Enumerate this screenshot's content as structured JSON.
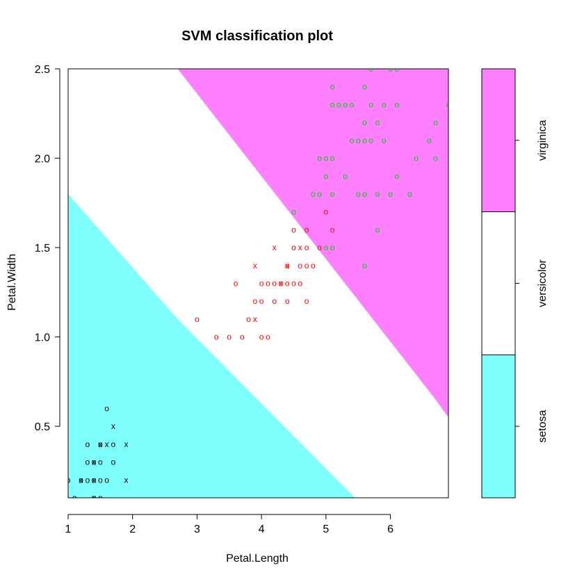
{
  "chart_data": {
    "type": "scatter",
    "title": "SVM classification plot",
    "xlabel": "Petal.Length",
    "ylabel": "Petal.Width",
    "xlim": [
      1,
      6.9
    ],
    "ylim": [
      0.1,
      2.5
    ],
    "x_ticks": [
      1,
      2,
      3,
      4,
      5,
      6
    ],
    "y_ticks": [
      0.5,
      1.0,
      1.5,
      2.0,
      2.5
    ],
    "x_tick_labels": [
      "1",
      "2",
      "3",
      "4",
      "5",
      "6"
    ],
    "y_tick_labels": [
      "0.5",
      "1.0",
      "1.5",
      "2.0",
      "2.5"
    ],
    "grid": false,
    "legend_position": "right",
    "markers": {
      "non_support_vector": "o",
      "support_vector": "x"
    },
    "regions": [
      {
        "name": "setosa",
        "color": "#80FFFF",
        "boundary": [
          [
            1.0,
            1.8
          ],
          [
            2.7,
            1.1
          ],
          [
            5.45,
            0.1
          ]
        ]
      },
      {
        "name": "versicolor",
        "color": "#FFFFFF",
        "boundary": [
          [
            2.7,
            2.5
          ],
          [
            6.7,
            0.65
          ],
          [
            6.9,
            0.55
          ]
        ]
      },
      {
        "name": "virginica",
        "color": "#FF80FF"
      }
    ],
    "legend": {
      "labels": [
        "setosa",
        "versicolor",
        "virginica"
      ],
      "colors": [
        "#80FFFF",
        "#FFFFFF",
        "#FF80FF"
      ]
    },
    "series": [
      {
        "name": "setosa",
        "color": "#000000",
        "points": [
          [
            1.0,
            0.2,
            "o"
          ],
          [
            1.1,
            0.1,
            "o"
          ],
          [
            1.2,
            0.2,
            "o"
          ],
          [
            1.3,
            0.2,
            "o"
          ],
          [
            1.3,
            0.3,
            "o"
          ],
          [
            1.3,
            0.4,
            "o"
          ],
          [
            1.4,
            0.1,
            "o"
          ],
          [
            1.4,
            0.2,
            "o"
          ],
          [
            1.4,
            0.3,
            "o"
          ],
          [
            1.5,
            0.1,
            "o"
          ],
          [
            1.5,
            0.2,
            "o"
          ],
          [
            1.5,
            0.3,
            "o"
          ],
          [
            1.5,
            0.4,
            "o"
          ],
          [
            1.6,
            0.2,
            "o"
          ],
          [
            1.6,
            0.6,
            "o"
          ],
          [
            1.7,
            0.3,
            "o"
          ],
          [
            1.7,
            0.4,
            "o"
          ],
          [
            1.2,
            0.2,
            "x"
          ],
          [
            1.4,
            0.1,
            "x"
          ],
          [
            1.4,
            0.2,
            "x"
          ],
          [
            1.4,
            0.3,
            "x"
          ],
          [
            1.5,
            0.4,
            "x"
          ],
          [
            1.6,
            0.4,
            "x"
          ],
          [
            1.7,
            0.5,
            "x"
          ],
          [
            1.9,
            0.2,
            "x"
          ],
          [
            1.9,
            0.4,
            "x"
          ]
        ]
      },
      {
        "name": "versicolor",
        "color": "#FF0000",
        "points": [
          [
            3.0,
            1.1,
            "o"
          ],
          [
            3.3,
            1.0,
            "o"
          ],
          [
            3.5,
            1.0,
            "o"
          ],
          [
            3.6,
            1.3,
            "o"
          ],
          [
            3.7,
            1.0,
            "o"
          ],
          [
            3.8,
            1.1,
            "o"
          ],
          [
            3.9,
            1.2,
            "o"
          ],
          [
            4.0,
            1.0,
            "o"
          ],
          [
            4.0,
            1.2,
            "o"
          ],
          [
            4.0,
            1.3,
            "o"
          ],
          [
            4.1,
            1.0,
            "o"
          ],
          [
            4.1,
            1.3,
            "o"
          ],
          [
            4.2,
            1.2,
            "o"
          ],
          [
            4.2,
            1.3,
            "o"
          ],
          [
            4.3,
            1.3,
            "o"
          ],
          [
            4.4,
            1.2,
            "o"
          ],
          [
            4.4,
            1.3,
            "o"
          ],
          [
            4.4,
            1.4,
            "o"
          ],
          [
            4.5,
            1.3,
            "o"
          ],
          [
            4.5,
            1.5,
            "o"
          ],
          [
            4.5,
            1.6,
            "o"
          ],
          [
            4.6,
            1.3,
            "o"
          ],
          [
            4.6,
            1.4,
            "o"
          ],
          [
            4.7,
            1.2,
            "o"
          ],
          [
            4.7,
            1.4,
            "o"
          ],
          [
            4.7,
            1.5,
            "o"
          ],
          [
            4.7,
            1.6,
            "o"
          ],
          [
            4.8,
            1.4,
            "o"
          ],
          [
            4.9,
            1.5,
            "o"
          ],
          [
            5.0,
            1.7,
            "o"
          ],
          [
            5.1,
            1.6,
            "o"
          ],
          [
            3.9,
            1.1,
            "x"
          ],
          [
            3.9,
            1.4,
            "x"
          ],
          [
            4.2,
            1.5,
            "x"
          ],
          [
            4.3,
            1.3,
            "x"
          ],
          [
            4.4,
            1.4,
            "x"
          ],
          [
            4.6,
            1.5,
            "x"
          ]
        ]
      },
      {
        "name": "virginica",
        "color": "#00CC00",
        "points": [
          [
            4.5,
            1.7,
            "o"
          ],
          [
            4.8,
            1.8,
            "o"
          ],
          [
            4.9,
            1.8,
            "o"
          ],
          [
            4.9,
            2.0,
            "o"
          ],
          [
            5.0,
            1.5,
            "o"
          ],
          [
            5.0,
            2.0,
            "o"
          ],
          [
            5.0,
            1.9,
            "o"
          ],
          [
            5.1,
            1.5,
            "o"
          ],
          [
            5.1,
            1.8,
            "o"
          ],
          [
            5.1,
            2.0,
            "o"
          ],
          [
            5.1,
            2.3,
            "o"
          ],
          [
            5.1,
            2.4,
            "o"
          ],
          [
            5.2,
            2.3,
            "o"
          ],
          [
            5.3,
            2.3,
            "o"
          ],
          [
            5.3,
            1.9,
            "o"
          ],
          [
            5.4,
            2.1,
            "o"
          ],
          [
            5.4,
            2.3,
            "o"
          ],
          [
            5.5,
            1.8,
            "o"
          ],
          [
            5.5,
            2.1,
            "o"
          ],
          [
            5.6,
            1.4,
            "o"
          ],
          [
            5.6,
            1.8,
            "o"
          ],
          [
            5.6,
            2.1,
            "o"
          ],
          [
            5.6,
            2.2,
            "o"
          ],
          [
            5.6,
            2.4,
            "o"
          ],
          [
            5.7,
            2.1,
            "o"
          ],
          [
            5.7,
            2.3,
            "o"
          ],
          [
            5.7,
            2.5,
            "o"
          ],
          [
            5.8,
            1.6,
            "o"
          ],
          [
            5.8,
            1.8,
            "o"
          ],
          [
            5.8,
            2.2,
            "o"
          ],
          [
            5.9,
            2.1,
            "o"
          ],
          [
            5.9,
            2.3,
            "o"
          ],
          [
            6.0,
            1.8,
            "o"
          ],
          [
            6.1,
            1.9,
            "o"
          ],
          [
            6.1,
            2.3,
            "o"
          ],
          [
            6.1,
            2.5,
            "o"
          ],
          [
            6.3,
            1.8,
            "o"
          ],
          [
            6.4,
            2.0,
            "o"
          ],
          [
            6.6,
            2.1,
            "o"
          ],
          [
            6.7,
            2.0,
            "o"
          ],
          [
            6.7,
            2.2,
            "o"
          ],
          [
            6.9,
            2.3,
            "o"
          ],
          [
            6.0,
            2.5,
            "o"
          ]
        ]
      }
    ]
  }
}
